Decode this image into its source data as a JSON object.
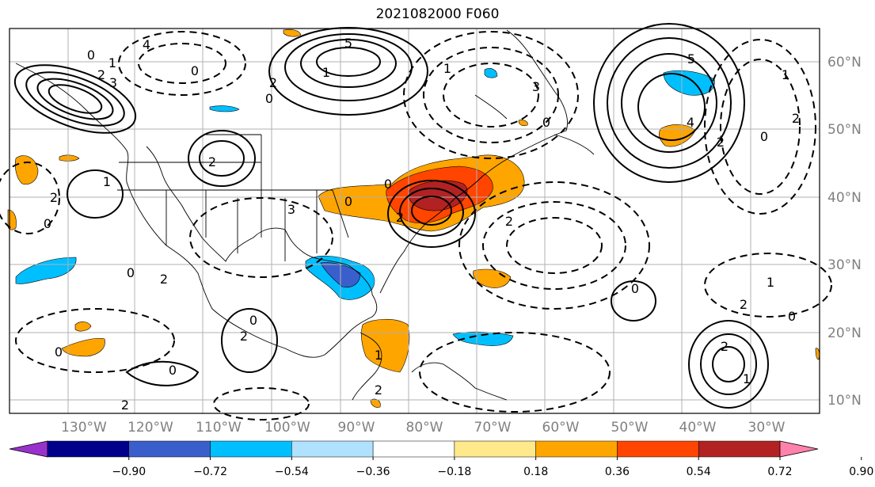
{
  "title": "2021082000 F060",
  "map": {
    "lat_labels": [
      "60°N",
      "50°N",
      "40°N",
      "30°N",
      "20°N",
      "10°N"
    ],
    "lon_labels": [
      "130°W",
      "120°W",
      "110°W",
      "100°W",
      "90°W",
      "80°W",
      "70°W",
      "60°W",
      "50°W",
      "40°W",
      "30°W"
    ]
  },
  "colorbar": {
    "ticks": [
      "−0.90",
      "−0.72",
      "−0.54",
      "−0.36",
      "−0.18",
      "0.18",
      "0.36",
      "0.54",
      "0.72",
      "0.90"
    ],
    "colors": [
      "#9932cc",
      "#00008b",
      "#3a5fcd",
      "#00bfff",
      "#b0e2ff",
      "#ffffff",
      "#ffe98a",
      "#ffa500",
      "#ff4500",
      "#b22222",
      "#ff82ab"
    ]
  },
  "contour_labels": [
    "0",
    "1",
    "2",
    "3",
    "4",
    "5",
    "0",
    "2",
    "1",
    "0",
    "2",
    "2",
    "1",
    "0",
    "0",
    "2",
    "0",
    "0",
    "2",
    "3",
    "5",
    "4",
    "2",
    "0",
    "1",
    "2",
    "3",
    "0",
    "1",
    "2",
    "1",
    "0",
    "2",
    "1",
    "2",
    "0",
    "2",
    "0",
    "0",
    "0",
    "2",
    "1",
    "2"
  ]
}
